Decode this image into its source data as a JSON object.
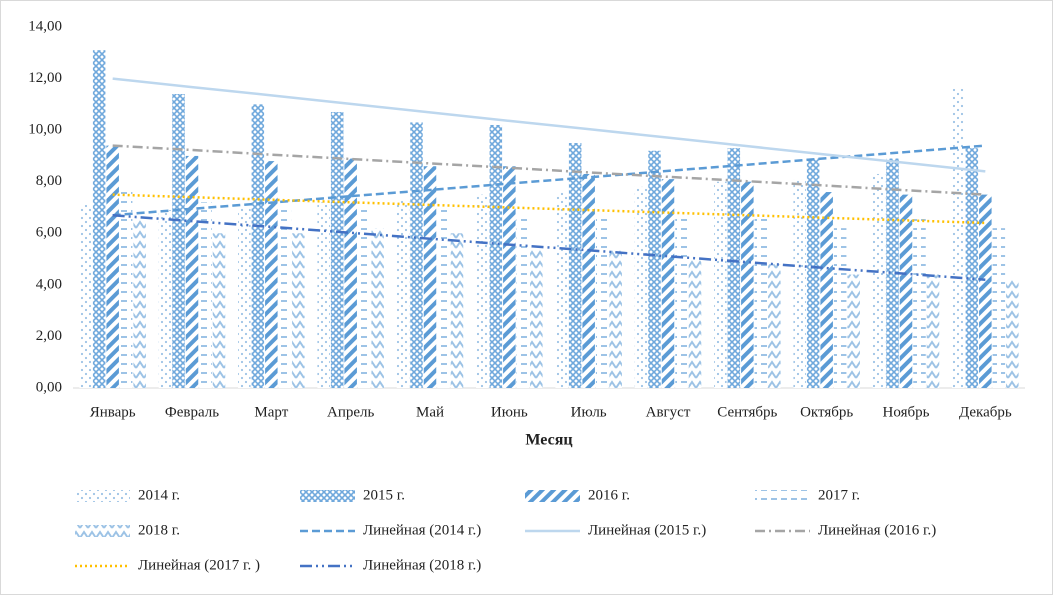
{
  "chart_data": {
    "type": "bar",
    "x_label": "Месяц",
    "categories": [
      "Январь",
      "Февраль",
      "Март",
      "Апрель",
      "Май",
      "Июнь",
      "Июль",
      "Август",
      "Сентябрь",
      "Октябрь",
      "Ноябрь",
      "Декабрь"
    ],
    "ylim": [
      0,
      14
    ],
    "yticks": [
      {
        "value": 0,
        "label": "0,00"
      },
      {
        "value": 2,
        "label": "2,00"
      },
      {
        "value": 4,
        "label": "4,00"
      },
      {
        "value": 6,
        "label": "6,00"
      },
      {
        "value": 8,
        "label": "8,00"
      },
      {
        "value": 10,
        "label": "10,00"
      },
      {
        "value": 12,
        "label": "12,00"
      },
      {
        "value": 14,
        "label": "14,00"
      }
    ],
    "grid": false,
    "series": [
      {
        "name": "2014 г.",
        "type": "bar",
        "pattern": "dots",
        "color": "#9dc3e6",
        "values": [
          7.1,
          6.9,
          7.0,
          7.2,
          7.3,
          7.5,
          7.6,
          7.8,
          8.0,
          8.1,
          8.3,
          11.6
        ]
      },
      {
        "name": "2015 г.",
        "type": "bar",
        "pattern": "crosshatch",
        "color": "#6fa8dc",
        "values": [
          13.1,
          11.4,
          11.0,
          10.7,
          10.3,
          10.2,
          9.5,
          9.2,
          9.3,
          8.9,
          8.9,
          9.3
        ]
      },
      {
        "name": "2016 г.",
        "type": "bar",
        "pattern": "stripes",
        "color": "#5b9bd5",
        "values": [
          9.4,
          9.0,
          8.8,
          8.9,
          8.6,
          8.6,
          8.3,
          8.1,
          8.0,
          7.6,
          7.5,
          7.5
        ]
      },
      {
        "name": "2017 г.",
        "type": "bar",
        "pattern": "dashes",
        "color": "#9dc3e6",
        "values": [
          7.8,
          7.2,
          7.0,
          7.0,
          7.0,
          6.6,
          6.6,
          6.8,
          6.6,
          6.2,
          6.8,
          6.2
        ]
      },
      {
        "name": "2018 г.",
        "type": "bar",
        "pattern": "zigzag",
        "color": "#9dc3e6",
        "values": [
          6.6,
          6.0,
          6.0,
          6.2,
          6.0,
          5.4,
          5.4,
          5.0,
          4.8,
          4.4,
          4.4,
          4.2
        ]
      },
      {
        "name": "Линейная (2014 г.)",
        "type": "line",
        "dash": "8 4",
        "color": "#5b9bd5",
        "values": [
          6.7,
          6.95,
          7.19,
          7.44,
          7.68,
          7.93,
          8.17,
          8.42,
          8.66,
          8.91,
          9.15,
          9.4
        ]
      },
      {
        "name": "Линейная (2015 г.)",
        "type": "line",
        "dash": "none",
        "color": "#bdd7ee",
        "values": [
          12.0,
          11.67,
          11.35,
          11.02,
          10.69,
          10.36,
          10.04,
          9.71,
          9.38,
          9.05,
          8.73,
          8.4
        ]
      },
      {
        "name": "Линейная (2016 г.)",
        "type": "line",
        "dash": "10 4 2 4",
        "color": "#a5a5a5",
        "values": [
          9.4,
          9.23,
          9.05,
          8.88,
          8.71,
          8.54,
          8.36,
          8.19,
          8.02,
          7.85,
          7.67,
          7.5
        ]
      },
      {
        "name": "Линейная (2017 г. )",
        "type": "line",
        "dash": "2 3",
        "color": "#ffc000",
        "values": [
          7.5,
          7.4,
          7.3,
          7.2,
          7.1,
          7.0,
          6.9,
          6.8,
          6.7,
          6.6,
          6.5,
          6.4
        ]
      },
      {
        "name": "Линейная (2018 г.)",
        "type": "line",
        "dash": "12 4 2 4 2 4",
        "color": "#4472c4",
        "values": [
          6.7,
          6.47,
          6.25,
          6.02,
          5.79,
          5.56,
          5.34,
          5.11,
          4.88,
          4.65,
          4.43,
          4.2
        ]
      }
    ]
  }
}
